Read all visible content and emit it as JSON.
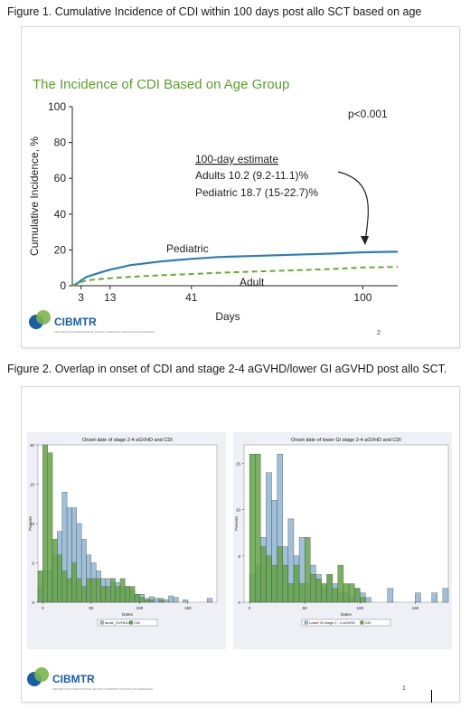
{
  "figure1": {
    "caption": "Figure 1. Cumulative Incidence of CDI within 100 days post allo SCT based on age",
    "slide_title": "The Incidence of CDI Based on Age Group",
    "p_value": "p<0.001",
    "estimate_heading": "100-day estimate",
    "estimate_adults": "Adults 10.2 (9.2-11.1)%",
    "estimate_pediatric": "Pediatric 18.7 (15-22.7)%",
    "label_pediatric": "Pediatric",
    "label_adult": "Adult",
    "logo_text": "CIBMTR",
    "logo_subtext": "CENTER FOR INTERNATIONAL BLOOD & MARROW TRANSPLANT RESEARCH",
    "page_number": "2"
  },
  "figure2": {
    "caption": "Figure 2. Overlap in onset of CDI and stage 2-4 aGVHD/lower GI aGVHD post allo SCT.",
    "logo_text": "CIBMTR",
    "logo_subtext": "CENTER FOR INTERNATIONAL BLOOD & MARROW TRANSPLANT RESEARCH",
    "page_number": "1"
  },
  "colors": {
    "title_green": "#5aa02c",
    "pediatric_line": "#2e7cb8",
    "adult_line": "#6aaa2a",
    "hist_blue": "#8fb4d4",
    "hist_green": "#63a244",
    "logo_blue": "#1a5ea8",
    "logo_green": "#7ab648"
  },
  "chart_data": [
    {
      "type": "line",
      "xlabel": "Days",
      "ylabel": "Cumulative Incidence, %",
      "ylim": [
        0,
        100
      ],
      "xlim": [
        0,
        112
      ],
      "yticks": [
        0,
        20,
        40,
        60,
        80,
        100
      ],
      "xticks": [
        3,
        13,
        41,
        100
      ],
      "grid": false,
      "series": [
        {
          "name": "Pediatric",
          "style": "solid",
          "x": [
            0,
            2,
            3,
            5,
            8,
            10,
            13,
            16,
            20,
            25,
            30,
            35,
            41,
            50,
            60,
            70,
            80,
            90,
            100,
            112
          ],
          "y": [
            0,
            1.5,
            3,
            5,
            6.5,
            7.5,
            9,
            10,
            11.5,
            12.5,
            13.5,
            14.2,
            15,
            16,
            16.5,
            17,
            17.5,
            18,
            18.7,
            19
          ]
        },
        {
          "name": "Adult",
          "style": "dashed",
          "x": [
            0,
            2,
            3,
            5,
            8,
            13,
            20,
            30,
            41,
            50,
            60,
            70,
            80,
            90,
            100,
            112
          ],
          "y": [
            0,
            1.2,
            2,
            3,
            3.5,
            4.2,
            5,
            5.8,
            6.5,
            7.2,
            7.8,
            8.3,
            8.8,
            9.4,
            10.2,
            10.5
          ]
        }
      ]
    },
    {
      "type": "bar",
      "title": "Onset date of stage 2-4 aGVHD and CDI",
      "xlabel": "Dates",
      "ylabel": "Percent",
      "ylim": [
        0,
        20
      ],
      "xlim": [
        -5,
        180
      ],
      "yticks": [
        0,
        5,
        10,
        15,
        20
      ],
      "xticks": [
        0,
        50,
        100,
        150
      ],
      "bin_width": 5,
      "legend": [
        "acute_GVHD24",
        "CDI"
      ],
      "legend_position": "bottom",
      "series": [
        {
          "name": "acute_GVHD24",
          "bin_start": [
            -5,
            0,
            5,
            10,
            15,
            20,
            25,
            30,
            35,
            40,
            45,
            50,
            55,
            60,
            65,
            70,
            75,
            80,
            85,
            90,
            95,
            100,
            105,
            110,
            115,
            120,
            125,
            130,
            135,
            140,
            145,
            150,
            155,
            160,
            165,
            170,
            175
          ],
          "values": [
            2,
            4,
            4,
            6,
            9,
            14,
            12,
            12,
            10,
            8,
            6,
            5,
            4,
            3,
            3,
            2.5,
            2.5,
            2,
            2,
            1.5,
            1,
            1,
            0.5,
            0.7,
            0.5,
            0.5,
            0.3,
            0.8,
            0.6,
            0,
            0.3,
            0,
            0,
            0,
            0,
            0.5,
            0
          ]
        },
        {
          "name": "CDI",
          "bin_start": [
            -5,
            0,
            5,
            10,
            15,
            20,
            25,
            30,
            35,
            40,
            45,
            50,
            55,
            60,
            65,
            70,
            75,
            80,
            85,
            90,
            95,
            100,
            105,
            110,
            115,
            120,
            125,
            130,
            135,
            140,
            145,
            150,
            155,
            160,
            165,
            170,
            175
          ],
          "values": [
            4,
            20,
            19,
            8,
            6,
            4,
            3,
            5,
            3,
            2,
            3,
            3,
            3,
            2,
            2,
            3,
            2,
            3,
            2,
            2,
            1,
            0.6,
            0.3,
            0.3,
            0,
            0.3,
            0,
            0,
            0,
            0,
            0,
            0,
            0,
            0,
            0,
            0,
            0
          ]
        }
      ]
    },
    {
      "type": "bar",
      "title": "Onset date of lower GI stage 2-4 aGVHD and CDI",
      "xlabel": "Dates",
      "ylabel": "Percent",
      "ylim": [
        0,
        17
      ],
      "xlim": [
        -5,
        180
      ],
      "yticks": [
        0,
        5,
        10,
        15
      ],
      "xticks": [
        0,
        50,
        100,
        150
      ],
      "bin_width": 5,
      "legend": [
        "Lower GI stage 2 - 4 aGVHD",
        "CDI"
      ],
      "legend_position": "bottom",
      "series": [
        {
          "name": "Lower GI stage 2 - 4 aGVHD",
          "bin_start": [
            -5,
            0,
            5,
            10,
            15,
            20,
            25,
            30,
            35,
            40,
            45,
            50,
            55,
            60,
            65,
            70,
            75,
            80,
            85,
            90,
            95,
            100,
            105,
            110,
            115,
            120,
            125,
            130,
            135,
            140,
            145,
            150,
            155,
            160,
            165,
            170,
            175
          ],
          "values": [
            0,
            3,
            4,
            7,
            14,
            11,
            16,
            6,
            9,
            5,
            7,
            2,
            4,
            3,
            1.5,
            3,
            2,
            1,
            1,
            0.5,
            1.5,
            1,
            0.5,
            0,
            0,
            0,
            1.5,
            0,
            0,
            0,
            0,
            1,
            0,
            0,
            1,
            0,
            1.5
          ]
        },
        {
          "name": "CDI",
          "bin_start": [
            -5,
            0,
            5,
            10,
            15,
            20,
            25,
            30,
            35,
            40,
            45,
            50,
            55,
            60,
            65,
            70,
            75,
            80,
            85,
            90,
            95,
            100,
            105,
            110,
            115,
            120,
            125,
            130,
            135,
            140,
            145,
            150,
            155,
            160,
            165,
            170,
            175
          ],
          "values": [
            0,
            16,
            16,
            6,
            5,
            4,
            6,
            4,
            2,
            4,
            2,
            7,
            3,
            2.5,
            2,
            3,
            1.5,
            4,
            2,
            2,
            1.5,
            0.5,
            0,
            0,
            0,
            0,
            0,
            0,
            0,
            0,
            0,
            0,
            0,
            0,
            0,
            0,
            0
          ]
        }
      ]
    }
  ]
}
